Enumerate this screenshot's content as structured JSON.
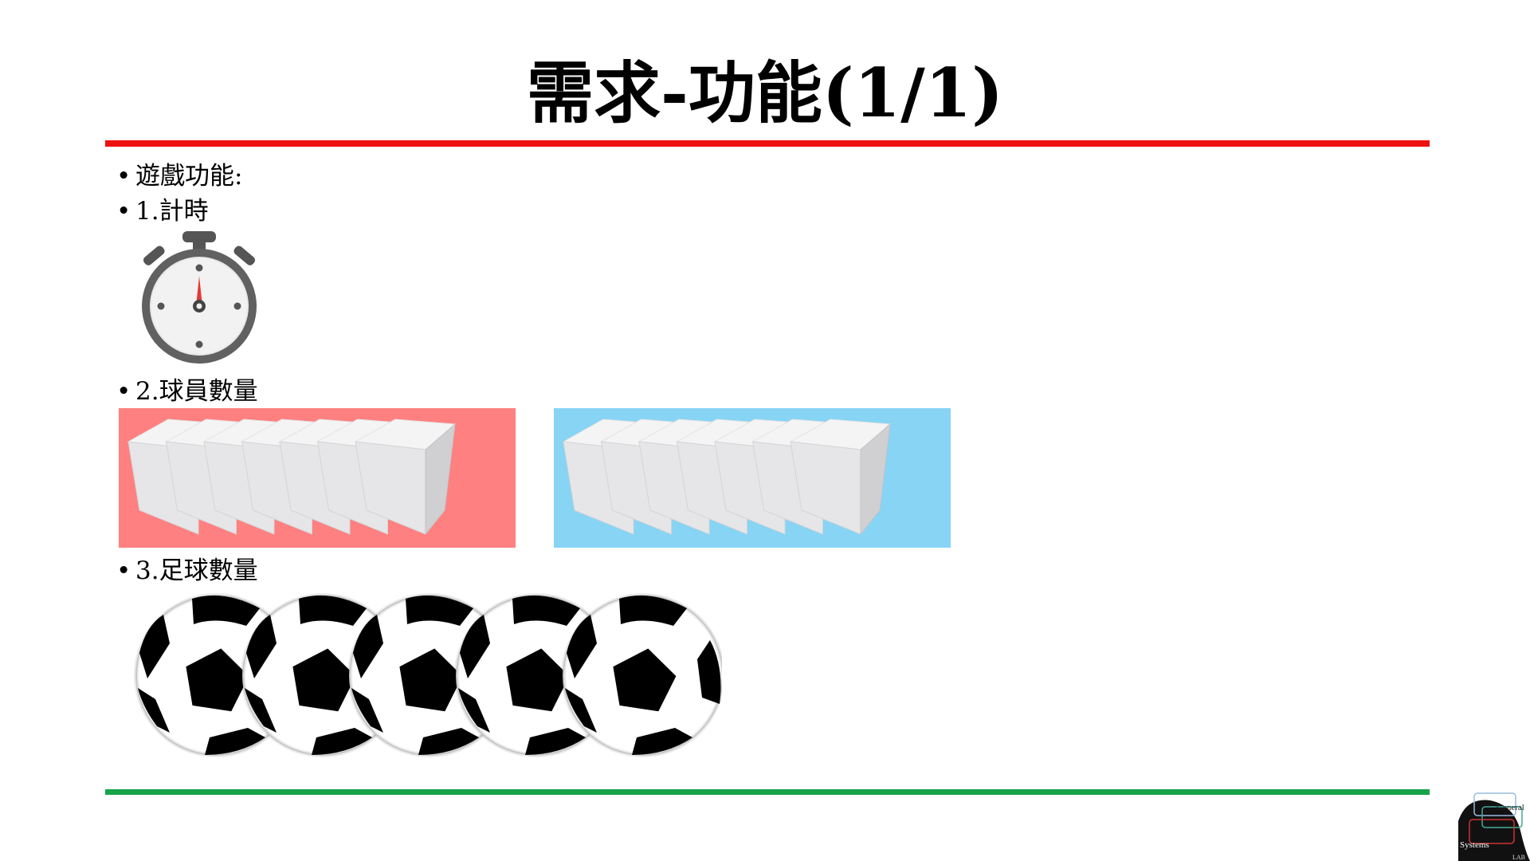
{
  "slide": {
    "title": "需求-功能(1/1)",
    "bullets": [
      {
        "marker": "•",
        "text": "遊戲功能:"
      },
      {
        "marker": "•",
        "text": "1.計時"
      },
      {
        "marker": "•",
        "text": "2.球員數量"
      },
      {
        "marker": "•",
        "text": "3.足球數量"
      }
    ],
    "colors": {
      "top_rule": "#ee1111",
      "bottom_rule": "#17a34a",
      "team_a_background": "#ff8080",
      "team_b_background": "#87d4f5"
    },
    "icons": {
      "timer": "stopwatch-icon",
      "player": "player-block-icon",
      "ball": "soccer-ball-icon",
      "logo": "lab-logo"
    },
    "teams": [
      {
        "name": "team-a",
        "players": 7
      },
      {
        "name": "team-b",
        "players": 7
      }
    ],
    "soccer_ball_count": 5,
    "logo": {
      "line1": "General",
      "line2": "Systems",
      "line3": "LAB"
    }
  }
}
